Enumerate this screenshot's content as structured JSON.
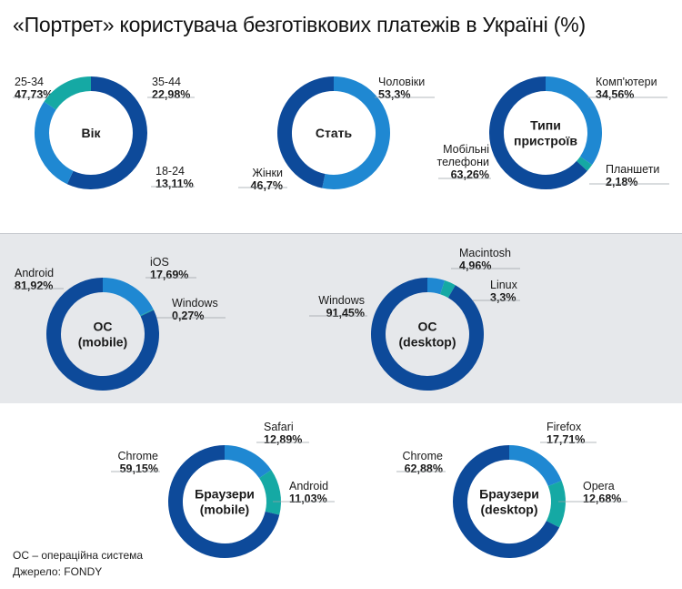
{
  "title": "«Портрет» користувача безготівкових платежів в Україні (%)",
  "colors": {
    "dark": "#0d4a9a",
    "mid": "#1f88d2",
    "teal": "#15a9a4",
    "leader": "#9aa0a6",
    "text": "#1a1a1a"
  },
  "footnote": "ОС – операційна система",
  "source": "Джерело: FONDY",
  "chart_data": [
    {
      "type": "pie",
      "center_label": [
        "Вік"
      ],
      "slices": [
        {
          "name": "25-34",
          "label": "47,73%",
          "value": 47.73,
          "color": "dark"
        },
        {
          "name": "35-44",
          "label": "22,98%",
          "value": 22.98,
          "color": "mid"
        },
        {
          "name": "18-24",
          "label": "13,11%",
          "value": 13.11,
          "color": "teal"
        }
      ]
    },
    {
      "type": "pie",
      "center_label": [
        "Стать"
      ],
      "slices": [
        {
          "name": "Чоловіки",
          "label": "53,3%",
          "value": 53.3,
          "color": "mid"
        },
        {
          "name": "Жінки",
          "label": "46,7%",
          "value": 46.7,
          "color": "dark"
        }
      ]
    },
    {
      "type": "pie",
      "center_label": [
        "Типи",
        "пристроїв"
      ],
      "slices": [
        {
          "name": "Комп'ютери",
          "label": "34,56%",
          "value": 34.56,
          "color": "mid"
        },
        {
          "name": "Планшети",
          "label": "2,18%",
          "value": 2.18,
          "color": "teal"
        },
        {
          "name": "Мобільні телефони",
          "label": "63,26%",
          "value": 63.26,
          "color": "dark"
        }
      ]
    },
    {
      "type": "pie",
      "center_label": [
        "ОС",
        "(mobile)"
      ],
      "slices": [
        {
          "name": "iOS",
          "label": "17,69%",
          "value": 17.69,
          "color": "mid"
        },
        {
          "name": "Windows",
          "label": "0,27%",
          "value": 0.27,
          "color": "teal"
        },
        {
          "name": "Android",
          "label": "81,92%",
          "value": 81.92,
          "color": "dark"
        }
      ]
    },
    {
      "type": "pie",
      "center_label": [
        "ОС",
        "(desktop)"
      ],
      "slices": [
        {
          "name": "Macintosh",
          "label": "4,96%",
          "value": 4.96,
          "color": "mid"
        },
        {
          "name": "Linux",
          "label": "3,3%",
          "value": 3.3,
          "color": "teal"
        },
        {
          "name": "Windows",
          "label": "91,45%",
          "value": 91.45,
          "color": "dark"
        }
      ]
    },
    {
      "type": "pie",
      "center_label": [
        "Браузери",
        "(mobile)"
      ],
      "slices": [
        {
          "name": "Safari",
          "label": "12,89%",
          "value": 12.89,
          "color": "mid"
        },
        {
          "name": "Android",
          "label": "11,03%",
          "value": 11.03,
          "color": "teal"
        },
        {
          "name": "Chrome",
          "label": "59,15%",
          "value": 59.15,
          "color": "dark"
        }
      ]
    },
    {
      "type": "pie",
      "center_label": [
        "Браузери",
        "(desktop)"
      ],
      "slices": [
        {
          "name": "Firefox",
          "label": "17,71%",
          "value": 17.71,
          "color": "mid"
        },
        {
          "name": "Opera",
          "label": "12,68%",
          "value": 12.68,
          "color": "teal"
        },
        {
          "name": "Chrome",
          "label": "62,88%",
          "value": 62.88,
          "color": "dark"
        }
      ]
    }
  ]
}
